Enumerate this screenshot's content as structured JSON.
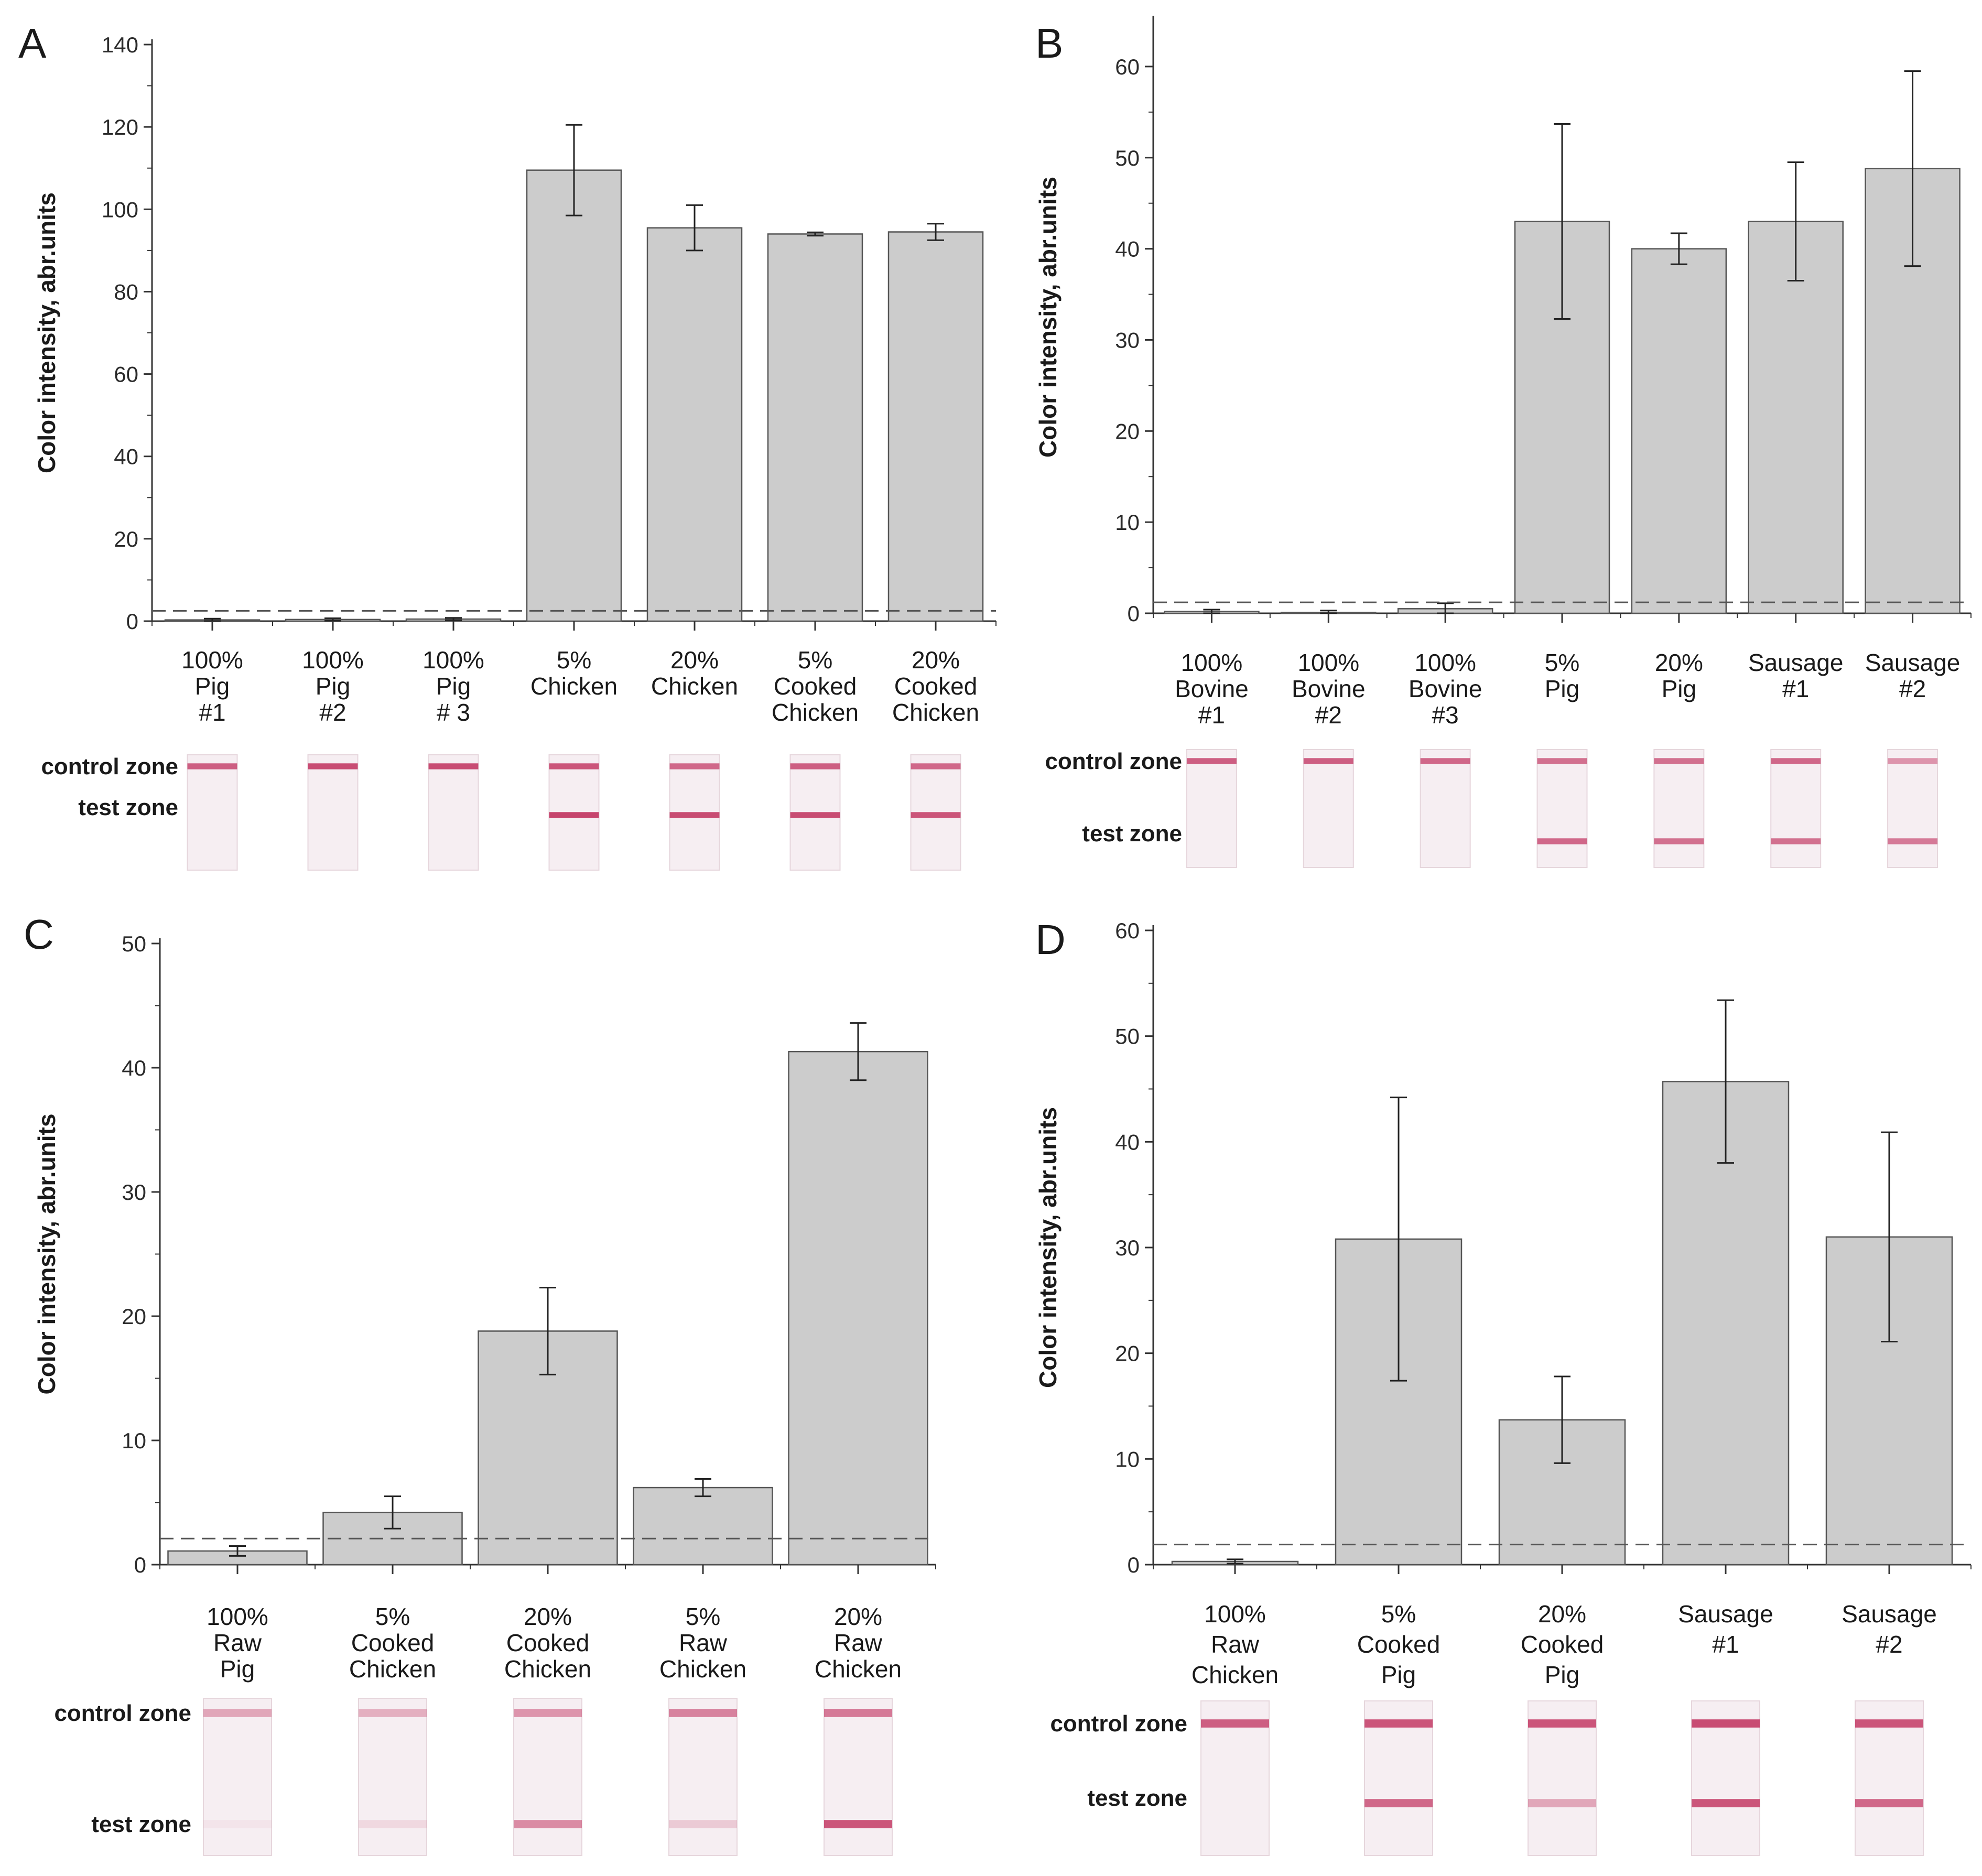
{
  "colors": {
    "bar_fill": "#cccccc",
    "bar_stroke": "#555555",
    "axis": "#333333",
    "threshold_line": "#555555",
    "strip_bg": "#f6eef2",
    "band": "#c33a65"
  },
  "chart_data": [
    {
      "id": "A",
      "type": "bar",
      "panel_label": "A",
      "ylabel": "Color intensity, abr.units",
      "ylim": [
        0,
        140
      ],
      "yticks": [
        0,
        20,
        40,
        60,
        80,
        100,
        120,
        140
      ],
      "threshold": 2.5,
      "categories": [
        [
          "100%",
          "Pig",
          "#1"
        ],
        [
          "100%",
          "Pig",
          "#2"
        ],
        [
          "100%",
          "Pig",
          "# 3"
        ],
        [
          "5%",
          "Chicken"
        ],
        [
          "20%",
          "Chicken"
        ],
        [
          "5%",
          "Cooked",
          "Chicken"
        ],
        [
          "20%",
          "Cooked",
          "Chicken"
        ]
      ],
      "values": [
        0.3,
        0.4,
        0.5,
        109.5,
        95.5,
        94.0,
        94.5
      ],
      "errors": [
        0.3,
        0.3,
        0.3,
        11.0,
        5.5,
        0.4,
        2.0
      ],
      "strips": {
        "control_label": "control zone",
        "test_label": "test zone",
        "control_intensity": [
          0.8,
          0.9,
          0.9,
          0.85,
          0.75,
          0.8,
          0.75
        ],
        "test_intensity": [
          0,
          0,
          0,
          0.95,
          0.9,
          0.9,
          0.85
        ]
      }
    },
    {
      "id": "B",
      "type": "bar",
      "panel_label": "B",
      "ylabel": "Color intensity, abr.units",
      "ylim": [
        0,
        65
      ],
      "yticks": [
        0,
        10,
        20,
        30,
        40,
        50,
        60
      ],
      "threshold": 1.2,
      "categories": [
        [
          "100%",
          "Bovine",
          "#1"
        ],
        [
          "100%",
          "Bovine",
          "#2"
        ],
        [
          "100%",
          "Bovine",
          "#3"
        ],
        [
          "5%",
          "Pig"
        ],
        [
          "20%",
          "Pig"
        ],
        [
          "Sausage",
          "#1"
        ],
        [
          "Sausage",
          "#2"
        ]
      ],
      "values": [
        0.2,
        0.1,
        0.5,
        43.0,
        40.0,
        43.0,
        48.8
      ],
      "errors": [
        0.2,
        0.2,
        0.6,
        10.7,
        1.7,
        6.5,
        10.7
      ],
      "strips": {
        "control_label": "control zone",
        "test_label": "test zone",
        "control_intensity": [
          0.8,
          0.8,
          0.75,
          0.7,
          0.7,
          0.75,
          0.5
        ],
        "test_intensity": [
          0,
          0,
          0,
          0.75,
          0.7,
          0.7,
          0.65
        ]
      }
    },
    {
      "id": "C",
      "type": "bar",
      "panel_label": "C",
      "ylabel": "Color intensity, abr.units",
      "ylim": [
        0,
        50
      ],
      "yticks": [
        0,
        10,
        20,
        30,
        40,
        50
      ],
      "threshold": 2.1,
      "categories": [
        [
          "100%",
          "Raw",
          "Pig"
        ],
        [
          "5%",
          "Cooked",
          "Chicken"
        ],
        [
          "20%",
          "Cooked",
          "Chicken"
        ],
        [
          "5%",
          "Raw",
          "Chicken"
        ],
        [
          "20%",
          "Raw",
          "Chicken"
        ]
      ],
      "values": [
        1.1,
        4.2,
        18.8,
        6.2,
        41.3
      ],
      "errors": [
        0.4,
        1.3,
        3.5,
        0.7,
        2.3
      ],
      "strips": {
        "control_label": "control zone",
        "test_label": "test zone",
        "control_intensity": [
          0.4,
          0.35,
          0.5,
          0.6,
          0.65
        ],
        "test_intensity": [
          0.05,
          0.12,
          0.55,
          0.2,
          0.85
        ]
      }
    },
    {
      "id": "D",
      "type": "bar",
      "panel_label": "D",
      "ylabel": "Color intensity, abr.units",
      "ylim": [
        0,
        60
      ],
      "yticks": [
        0,
        10,
        20,
        30,
        40,
        50,
        60
      ],
      "threshold": 1.9,
      "categories": [
        [
          "100%",
          "Raw",
          "Chicken"
        ],
        [
          "5%",
          "Cooked",
          "Pig"
        ],
        [
          "20%",
          "Cooked",
          "Pig"
        ],
        [
          "Sausage",
          "#1"
        ],
        [
          "Sausage",
          "#2"
        ]
      ],
      "values": [
        0.3,
        30.8,
        13.7,
        45.7,
        31.0
      ],
      "errors": [
        0.2,
        13.4,
        4.1,
        7.7,
        9.9
      ],
      "strips": {
        "control_label": "control zone",
        "test_label": "test zone",
        "control_intensity": [
          0.8,
          0.85,
          0.85,
          0.9,
          0.85
        ],
        "test_intensity": [
          0,
          0.75,
          0.4,
          0.85,
          0.75
        ]
      }
    }
  ]
}
